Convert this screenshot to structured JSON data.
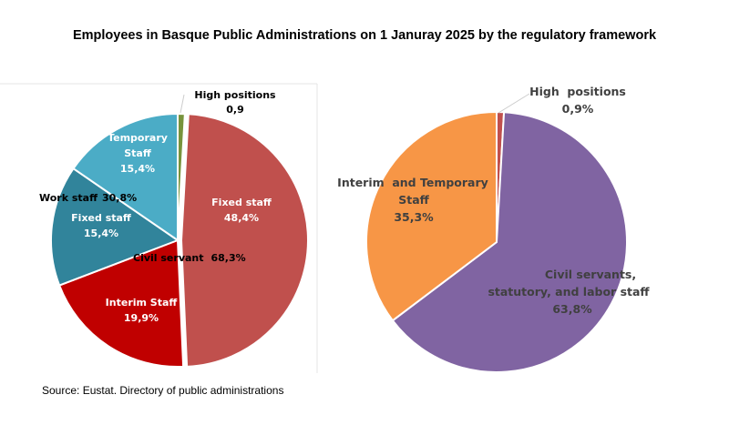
{
  "title": "Employees in Basque Public Administrations on 1 Januray 2025 by the regulatory framework",
  "source": "Source: Eustat. Directory of public administrations",
  "chart_data": [
    {
      "type": "pie",
      "title": "",
      "unit": "%",
      "slices": [
        {
          "label": "High positions",
          "value": 0.9,
          "value_label": "0,9",
          "color": "#77933C"
        },
        {
          "label": "Fixed staff",
          "value": 48.4,
          "value_label": "48,4%",
          "color": "#C0504D"
        },
        {
          "label": "Interim Staff",
          "value": 19.9,
          "value_label": "19,9%",
          "color": "#C00000"
        },
        {
          "label": "Fixed staff",
          "value": 15.4,
          "value_label": "15,4%",
          "color": "#31849B"
        },
        {
          "label": "Temporary Staff",
          "value": 15.4,
          "value_label": "15,4%",
          "color": "#4BACC6"
        }
      ],
      "group_labels": [
        {
          "label": "Civil servant",
          "value_label": "68,3%"
        },
        {
          "label": "Work staff",
          "value_label": "30,8%"
        }
      ]
    },
    {
      "type": "pie",
      "title": "",
      "unit": "%",
      "slices": [
        {
          "label": "High  positions",
          "value": 0.9,
          "value_label": "0,9%",
          "color": "#C0504D"
        },
        {
          "label": "Civil servants, statutory, and labor staff",
          "value": 63.8,
          "value_label": "63,8%",
          "color": "#8064A2"
        },
        {
          "label": "Interim  and Temporary Staff",
          "value": 35.3,
          "value_label": "35,3%",
          "color": "#F79646"
        }
      ]
    }
  ]
}
